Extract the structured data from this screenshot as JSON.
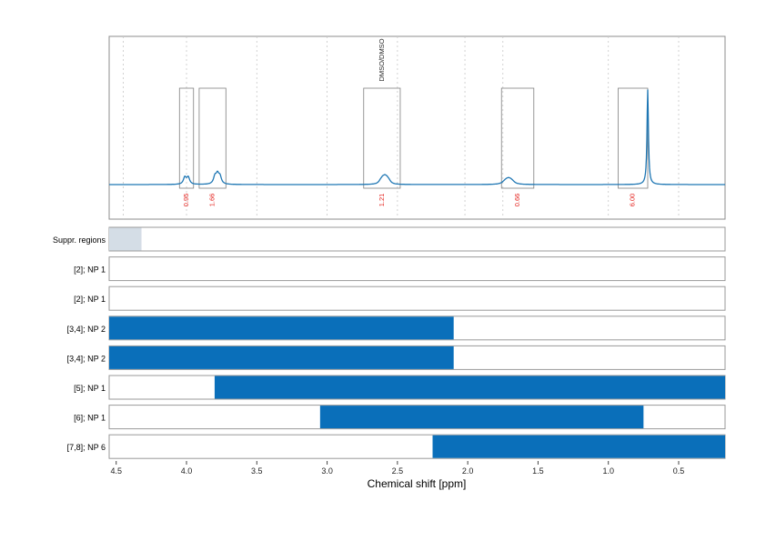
{
  "chart_data": {
    "type": "nmr_spectrum_with_range_tracks",
    "x_axis": {
      "label": "Chemical shift [ppm]",
      "range": [
        4.55,
        0.17
      ],
      "reversed": true,
      "ticks": [
        4.5,
        4.0,
        3.5,
        3.0,
        2.5,
        2.0,
        1.5,
        1.0,
        0.5
      ],
      "tick_labels": [
        "4.5",
        "4.0",
        "3.5",
        "3.0",
        "2.5",
        "2.0",
        "1.5",
        "1.0",
        "0.5"
      ]
    },
    "spectrum": {
      "color": "#1f77b4",
      "peaks": [
        {
          "ppm": 4.0,
          "height": 0.07,
          "width": 0.012,
          "pattern": "doublet"
        },
        {
          "ppm": 3.78,
          "height": 0.09,
          "width": 0.012,
          "pattern": "triplet"
        },
        {
          "ppm": 2.59,
          "height": 0.05,
          "width": 0.015,
          "pattern": "multiplet"
        },
        {
          "ppm": 1.71,
          "height": 0.03,
          "width": 0.02,
          "pattern": "multiplet"
        },
        {
          "ppm": 0.72,
          "height": 0.95,
          "width": 0.006,
          "pattern": "singlet"
        }
      ],
      "integration_regions": [
        {
          "from": 4.05,
          "to": 3.95,
          "value": "0.95"
        },
        {
          "from": 3.91,
          "to": 3.72,
          "value": "1.66"
        },
        {
          "from": 2.74,
          "to": 2.48,
          "value": "1.21",
          "annotation": "DMSO/DMSO"
        },
        {
          "from": 1.76,
          "to": 1.53,
          "value": "0.66"
        },
        {
          "from": 0.93,
          "to": 0.72,
          "value": "6.00"
        }
      ],
      "vertical_guides": [
        4.45,
        4.0,
        3.5,
        3.0,
        2.5,
        2.02,
        1.75,
        1.0,
        0.5
      ],
      "value_color": "#e4211c"
    },
    "tracks": [
      {
        "label": "Suppr. regions",
        "color": "#d4dde6",
        "segments": [
          [
            4.55,
            4.32
          ]
        ]
      },
      {
        "label": "[2]; NP 1",
        "color": "#0a6fba",
        "segments": []
      },
      {
        "label": "[2]; NP 1",
        "color": "#0a6fba",
        "segments": []
      },
      {
        "label": "[3,4]; NP 2",
        "color": "#0a6fba",
        "segments": [
          [
            4.55,
            2.1
          ]
        ]
      },
      {
        "label": "[3,4]; NP 2",
        "color": "#0a6fba",
        "segments": [
          [
            4.55,
            2.1
          ]
        ]
      },
      {
        "label": "[5]; NP 1",
        "color": "#0a6fba",
        "segments": [
          [
            3.8,
            0.17
          ]
        ]
      },
      {
        "label": "[6]; NP 1",
        "color": "#0a6fba",
        "segments": [
          [
            3.05,
            0.75
          ]
        ]
      },
      {
        "label": "[7,8]; NP 6",
        "color": "#0a6fba",
        "segments": [
          [
            2.25,
            0.17
          ]
        ]
      }
    ]
  }
}
